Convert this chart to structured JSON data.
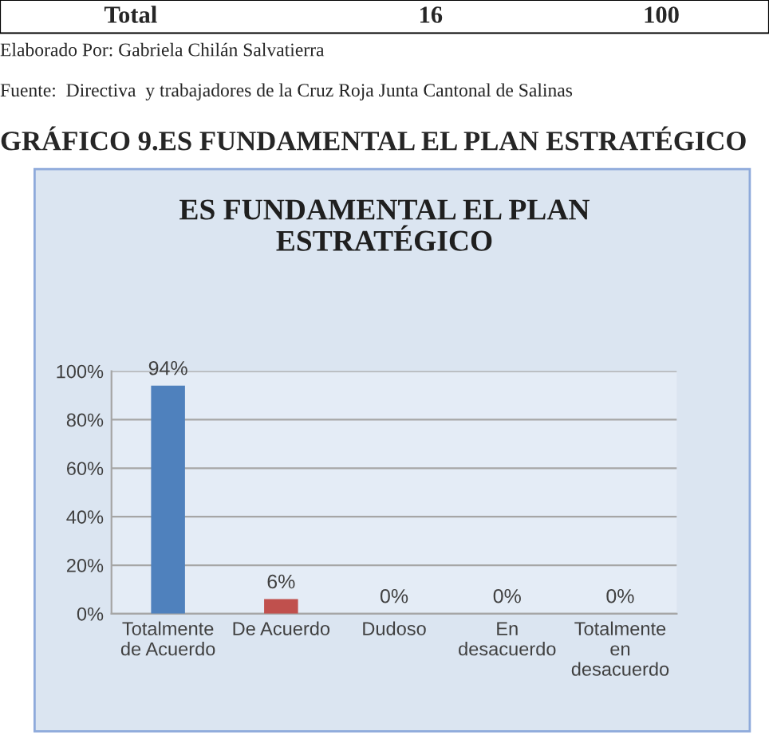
{
  "chart_data": {
    "type": "bar",
    "title": "ES FUNDAMENTAL EL PLAN\nESTRATÉGICO",
    "annotations": [
      "Total",
      "16",
      "100",
      "Elaborado Por: Gabriela Chilán Salvatierra",
      "Fuente:  Directiva  y trabajadores de la Cruz Roja Junta Cantonal de Salinas",
      "GRÁFICO 9.ES FUNDAMENTAL EL PLAN ESTRATÉGICO"
    ],
    "categories": [
      "Totalmente\nde Acuerdo",
      "De Acuerdo",
      "Dudoso",
      "En\ndesacuerdo",
      "Totalmente\nen\ndesacuerdo"
    ],
    "values": [
      94,
      6,
      0,
      0,
      0
    ],
    "colors": [
      "#4f81bd",
      "#c0504d",
      "#9bbb59",
      "#8064a2",
      "#4bacc6"
    ],
    "value_labels": [
      "94%",
      "6%",
      "0%",
      "0%",
      "0%"
    ],
    "ylim": [
      0,
      100
    ],
    "yticks": [
      {
        "value": 0,
        "label": "0%"
      },
      {
        "value": 20,
        "label": "20%"
      },
      {
        "value": 40,
        "label": "40%"
      },
      {
        "value": 60,
        "label": "60%"
      },
      {
        "value": 80,
        "label": "80%"
      },
      {
        "value": 100,
        "label": "100%"
      }
    ],
    "grid": "y",
    "legend": false
  }
}
